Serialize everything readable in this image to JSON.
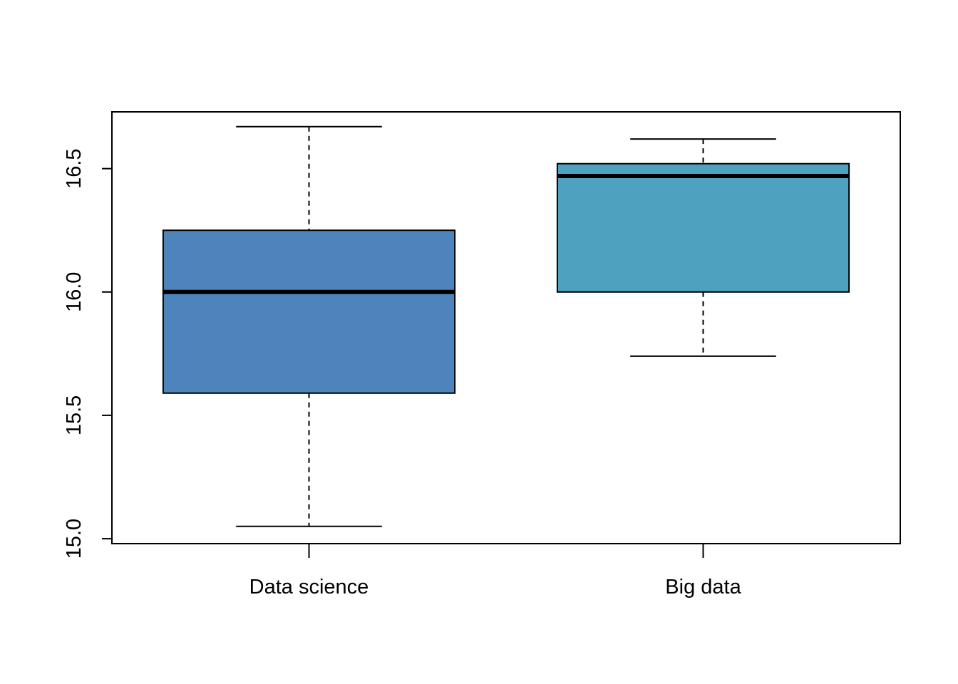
{
  "chart_data": {
    "type": "boxplot",
    "title": "",
    "xlabel": "",
    "ylabel": "",
    "ylim": [
      14.98,
      16.73
    ],
    "yticks": [
      15.0,
      15.5,
      16.0,
      16.5
    ],
    "ytick_labels": [
      "15.0",
      "15.5",
      "16.0",
      "16.5"
    ],
    "categories": [
      "Data science",
      "Big data"
    ],
    "boxes": [
      {
        "name": "Data science",
        "min": 15.05,
        "q1": 15.59,
        "median": 16.0,
        "q3": 16.25,
        "max": 16.67,
        "color": "#4d84bc"
      },
      {
        "name": "Big data",
        "min": 15.74,
        "q1": 16.0,
        "median": 16.47,
        "q3": 16.52,
        "max": 16.62,
        "color": "#4ea2c0"
      }
    ],
    "grid": false,
    "legend": "none"
  }
}
